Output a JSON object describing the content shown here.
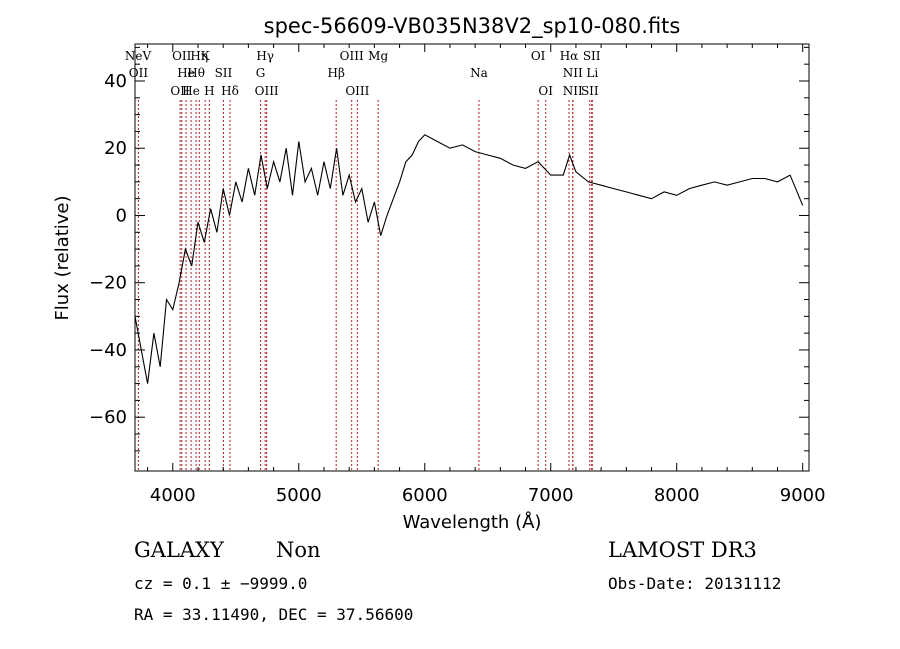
{
  "chart_data": {
    "type": "line",
    "title": "spec-56609-VB035N38V2_sp10-080.fits",
    "xlabel": "Wavelength (Å)",
    "ylabel": "Flux (relative)",
    "xlim": [
      3700,
      9050
    ],
    "ylim": [
      -76,
      51
    ],
    "xticks": [
      4000,
      5000,
      6000,
      7000,
      8000,
      9000
    ],
    "xtick_labels": [
      "4000",
      "5000",
      "6000",
      "7000",
      "8000",
      "9000"
    ],
    "yticks": [
      -60,
      -40,
      -20,
      0,
      20,
      40
    ],
    "ytick_labels": [
      "−60",
      "−40",
      "−20",
      "0",
      "20",
      "40"
    ],
    "series": [
      {
        "name": "flux",
        "x": [
          3700,
          3750,
          3800,
          3850,
          3900,
          3950,
          4000,
          4050,
          4100,
          4150,
          4200,
          4250,
          4300,
          4350,
          4400,
          4450,
          4500,
          4550,
          4600,
          4650,
          4700,
          4750,
          4800,
          4850,
          4900,
          4950,
          5000,
          5050,
          5100,
          5150,
          5200,
          5250,
          5300,
          5350,
          5400,
          5450,
          5500,
          5550,
          5600,
          5650,
          5700,
          5750,
          5800,
          5850,
          5900,
          5950,
          6000,
          6100,
          6200,
          6300,
          6400,
          6500,
          6600,
          6700,
          6800,
          6900,
          7000,
          7100,
          7150,
          7200,
          7300,
          7400,
          7500,
          7600,
          7700,
          7800,
          7900,
          8000,
          8100,
          8200,
          8300,
          8400,
          8500,
          8600,
          8700,
          8800,
          8900,
          9000
        ],
        "values": [
          -30,
          -40,
          -50,
          -35,
          -45,
          -25,
          -28,
          -20,
          -10,
          -15,
          -2,
          -8,
          2,
          -5,
          8,
          0,
          10,
          4,
          14,
          6,
          18,
          8,
          16,
          10,
          20,
          6,
          22,
          10,
          14,
          6,
          16,
          8,
          20,
          6,
          12,
          4,
          8,
          -2,
          4,
          -6,
          0,
          5,
          10,
          16,
          18,
          22,
          24,
          22,
          20,
          21,
          19,
          18,
          17,
          15,
          14,
          16,
          12,
          12,
          18,
          13,
          10,
          9,
          8,
          7,
          6,
          5,
          7,
          6,
          8,
          9,
          10,
          9,
          10,
          11,
          11,
          10,
          12,
          3
        ]
      }
    ],
    "line_labels": [
      {
        "text": "NeV",
        "wavelength": 3426
      },
      {
        "text": "OII",
        "wavelength": 3727
      },
      {
        "text": "OII",
        "wavelength": 4058
      },
      {
        "text": "OII",
        "wavelength": 4071
      },
      {
        "text": "He",
        "wavelength": 4105
      },
      {
        "text": "He",
        "wavelength": 4145
      },
      {
        "text": "Hη",
        "wavelength": 4210
      },
      {
        "text": "Hθ",
        "wavelength": 4185
      },
      {
        "text": "H",
        "wavelength": 4290
      },
      {
        "text": "K",
        "wavelength": 4257
      },
      {
        "text": "SII",
        "wavelength": 4402
      },
      {
        "text": "Hδ",
        "wavelength": 4454
      },
      {
        "text": "Hγ",
        "wavelength": 4733
      },
      {
        "text": "G",
        "wavelength": 4697
      },
      {
        "text": "OIII",
        "wavelength": 4745
      },
      {
        "text": "OIII",
        "wavelength": 5420
      },
      {
        "text": "Hβ",
        "wavelength": 5297
      },
      {
        "text": "OIII",
        "wavelength": 5465
      },
      {
        "text": "Mg",
        "wavelength": 5630
      },
      {
        "text": "Na",
        "wavelength": 6430
      },
      {
        "text": "OI",
        "wavelength": 6960
      },
      {
        "text": "OI",
        "wavelength": 6900
      },
      {
        "text": "NII",
        "wavelength": 7175
      },
      {
        "text": "NII",
        "wavelength": 7175
      },
      {
        "text": "Hα",
        "wavelength": 7145
      },
      {
        "text": "Li",
        "wavelength": 7330
      },
      {
        "text": "SII",
        "wavelength": 7310
      },
      {
        "text": "SII",
        "wavelength": 7325
      }
    ],
    "colors": {
      "line": "#000000",
      "marker_line": "#b22222",
      "axis": "#000000"
    }
  },
  "info": {
    "class": "GALAXY",
    "subclass": "Non",
    "survey": "LAMOST DR3",
    "cz": "cz = 0.1 ± −9999.0",
    "obs_date": "Obs-Date: 20131112",
    "coords": "RA =  33.11490, DEC =  37.56600"
  }
}
